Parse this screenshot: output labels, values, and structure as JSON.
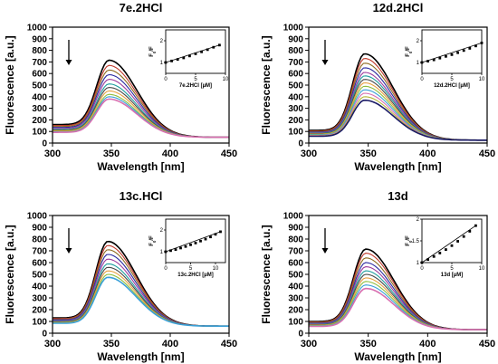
{
  "chart_data": [
    {
      "type": "line",
      "title": "7e.2HCl",
      "xlabel": "Wavelength [nm]",
      "ylabel": "Fluorescence [a.u.]",
      "xlim": [
        300,
        450
      ],
      "ylim": [
        0,
        1000
      ],
      "xticks": [
        300,
        350,
        400,
        450
      ],
      "yticks": [
        0,
        100,
        200,
        300,
        400,
        500,
        600,
        700,
        800,
        900,
        1000
      ],
      "start_value": 160,
      "peak_x": 348,
      "end_value": 50,
      "peak_values": [
        715,
        670,
        630,
        590,
        550,
        510,
        480,
        450,
        420,
        400,
        380
      ],
      "arrow": "down",
      "inset": {
        "type": "scatter",
        "xlabel": "7e.2HCl [µM]",
        "ylabel": "F0/F",
        "xlim": [
          0,
          10
        ],
        "ylim": [
          0.5,
          2.5
        ],
        "xticks": [
          0,
          5,
          10
        ],
        "yticks": [
          1,
          2
        ],
        "x": [
          0,
          1,
          2,
          3,
          4,
          5,
          6,
          7,
          8,
          9
        ],
        "y": [
          1.0,
          1.07,
          1.14,
          1.21,
          1.3,
          1.4,
          1.49,
          1.59,
          1.7,
          1.8
        ]
      }
    },
    {
      "type": "line",
      "title": "12d.2HCl",
      "xlabel": "Wavelength [nm]",
      "ylabel": "Fluorescence [a.u.]",
      "xlim": [
        300,
        450
      ],
      "ylim": [
        0,
        1000
      ],
      "xticks": [
        300,
        350,
        400,
        450
      ],
      "yticks": [
        0,
        100,
        200,
        300,
        400,
        500,
        600,
        700,
        800,
        900,
        1000
      ],
      "start_value": 110,
      "peak_x": 347,
      "end_value": 25,
      "peak_values": [
        770,
        730,
        690,
        650,
        610,
        580,
        550,
        520,
        490,
        460,
        430,
        400,
        370
      ],
      "arrow": "down",
      "inset": {
        "type": "scatter",
        "xlabel": "12d.2HCl [µM]",
        "ylabel": "F0/F",
        "xlim": [
          0,
          10
        ],
        "ylim": [
          0.5,
          2.5
        ],
        "xticks": [
          0,
          5,
          10
        ],
        "yticks": [
          1,
          2
        ],
        "x": [
          0,
          1,
          2,
          3,
          4,
          5,
          6,
          7,
          8,
          9,
          10
        ],
        "y": [
          1.0,
          1.06,
          1.12,
          1.2,
          1.28,
          1.36,
          1.45,
          1.55,
          1.65,
          1.76,
          1.9
        ]
      }
    },
    {
      "type": "line",
      "title": "13c.HCl",
      "xlabel": "Wavelength [nm]",
      "ylabel": "Fluorescence [a.u.]",
      "xlim": [
        300,
        450
      ],
      "ylim": [
        0,
        1000
      ],
      "xticks": [
        300,
        350,
        400,
        450
      ],
      "yticks": [
        0,
        100,
        200,
        300,
        400,
        500,
        600,
        700,
        800,
        900,
        1000
      ],
      "start_value": 130,
      "peak_x": 347,
      "end_value": 60,
      "peak_values": [
        780,
        745,
        710,
        670,
        630,
        590,
        560,
        530,
        500,
        475
      ],
      "arrow": "down",
      "inset": {
        "type": "scatter",
        "xlabel": "13c.2HCl [µM]",
        "ylabel": "F0/F",
        "xlim": [
          0,
          12
        ],
        "ylim": [
          0.5,
          2.5
        ],
        "xticks": [
          0,
          5,
          10
        ],
        "yticks": [
          1,
          2
        ],
        "x": [
          0,
          1,
          2,
          3,
          4,
          5,
          6,
          7,
          8,
          9,
          10,
          11
        ],
        "y": [
          1.0,
          1.05,
          1.1,
          1.17,
          1.24,
          1.32,
          1.4,
          1.49,
          1.58,
          1.68,
          1.8,
          1.92
        ]
      }
    },
    {
      "type": "line",
      "title": "13d",
      "xlabel": "Wavelength [nm]",
      "ylabel": "Fluorescence [a.u.]",
      "xlim": [
        300,
        450
      ],
      "ylim": [
        0,
        1000
      ],
      "xticks": [
        300,
        350,
        400,
        450
      ],
      "yticks": [
        0,
        100,
        200,
        300,
        400,
        500,
        600,
        700,
        800,
        900,
        1000
      ],
      "start_value": 100,
      "peak_x": 348,
      "end_value": 30,
      "peak_values": [
        715,
        680,
        640,
        600,
        565,
        530,
        500,
        470,
        440,
        410,
        380
      ],
      "arrow": "down",
      "inset": {
        "type": "scatter",
        "xlabel": "13d [µM]",
        "ylabel": "F0/F",
        "xlim": [
          0,
          10
        ],
        "ylim": [
          1.0,
          2.0
        ],
        "xticks": [
          0,
          5,
          10
        ],
        "yticks": [
          1.0,
          1.5,
          2.0
        ],
        "x": [
          0,
          1,
          2,
          3,
          4,
          5,
          6,
          7,
          8,
          9
        ],
        "y": [
          1.0,
          1.07,
          1.14,
          1.22,
          1.3,
          1.39,
          1.49,
          1.6,
          1.72,
          1.85
        ]
      }
    }
  ],
  "colors": {
    "axis": "#000000",
    "series": [
      "#000000",
      "#c0392b",
      "#8e6b1f",
      "#2a2aa0",
      "#9d3c9d",
      "#1f9e9e",
      "#4a4a4a",
      "#e8a040",
      "#8fbf3f",
      "#3aa0d8",
      "#d86fb0",
      "#b7b73a",
      "#1a1a66",
      "#7a7a7a"
    ]
  }
}
